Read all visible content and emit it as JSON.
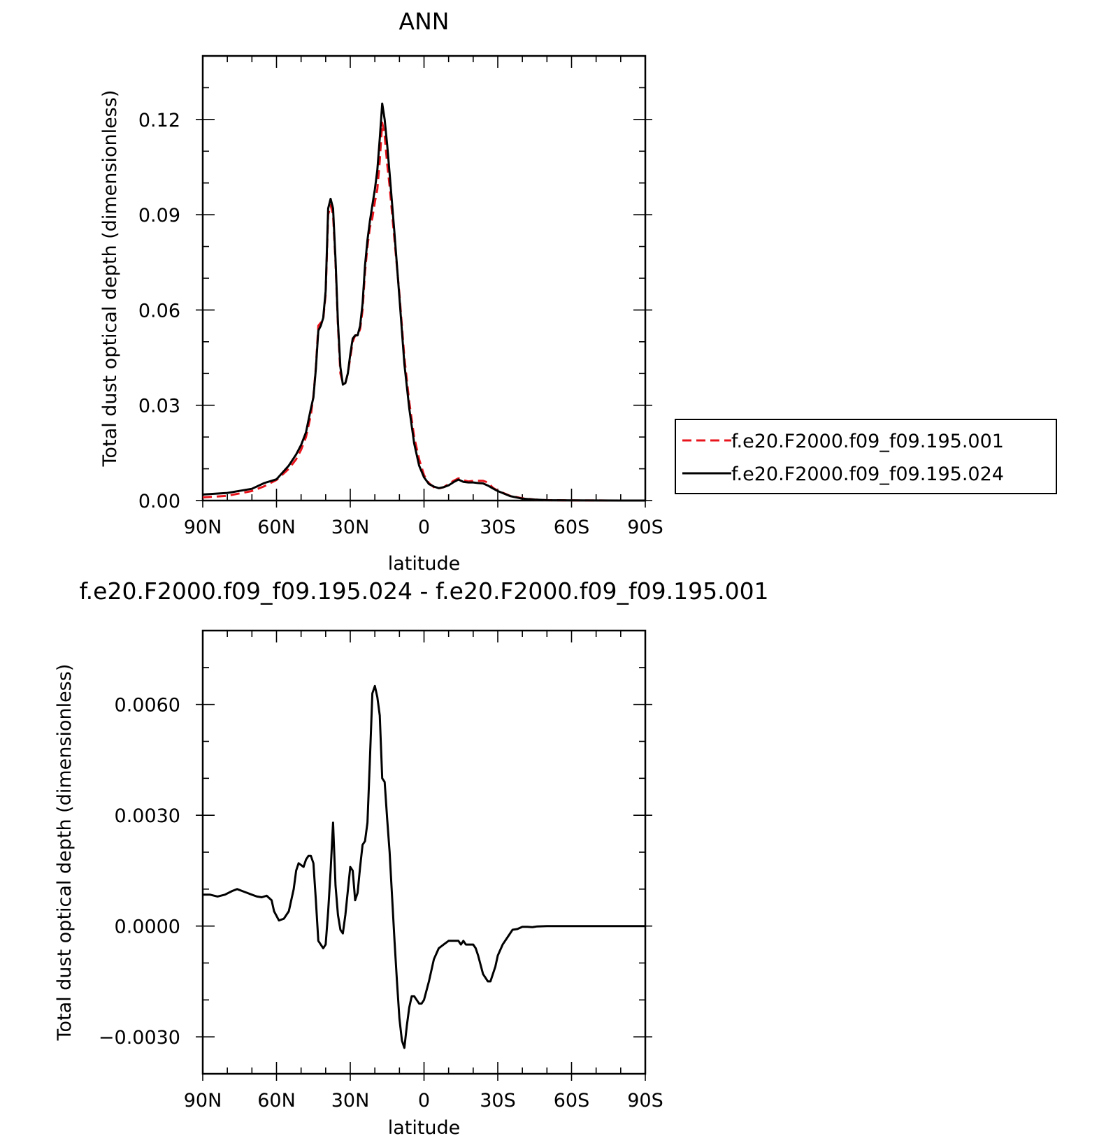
{
  "chart_data": [
    {
      "type": "line",
      "title": "ANN",
      "xlabel": "latitude",
      "ylabel": "Total dust optical depth (dimensionless)",
      "xlim": [
        90,
        -90
      ],
      "ylim": [
        0,
        0.14
      ],
      "x_tick_values": [
        90,
        60,
        30,
        0,
        -30,
        -60,
        -90
      ],
      "x_tick_labels": [
        "90N",
        "60N",
        "30N",
        "0",
        "30S",
        "60S",
        "90S"
      ],
      "y_tick_values": [
        0,
        0.03,
        0.06,
        0.09,
        0.12
      ],
      "y_tick_labels": [
        "0.00",
        "0.03",
        "0.06",
        "0.09",
        "0.12"
      ],
      "legend_position": "right",
      "series": [
        {
          "name": "f.e20.F2000.f09_f09.195.001",
          "color": "#e8141c",
          "dash": "dashed",
          "x": [
            90,
            80,
            70,
            65,
            60,
            55,
            52,
            50,
            48,
            46,
            45,
            44,
            43,
            42,
            41,
            40,
            39,
            38,
            37,
            36,
            35,
            34,
            33,
            32,
            31,
            30,
            29,
            28,
            27,
            26,
            25,
            24,
            23,
            22,
            21,
            20,
            19,
            18,
            17,
            16,
            15,
            14,
            12,
            10,
            8,
            6,
            4,
            2,
            0,
            -2,
            -4,
            -6,
            -8,
            -10,
            -12,
            -14,
            -16,
            -18,
            -20,
            -22,
            -24,
            -26,
            -28,
            -30,
            -35,
            -40,
            -45,
            -50,
            -60,
            -70,
            -80,
            -90
          ],
          "y": [
            0.001,
            0.0015,
            0.003,
            0.0045,
            0.0065,
            0.01,
            0.013,
            0.016,
            0.02,
            0.027,
            0.033,
            0.042,
            0.055,
            0.056,
            0.057,
            0.065,
            0.09,
            0.093,
            0.09,
            0.075,
            0.055,
            0.04,
            0.037,
            0.037,
            0.04,
            0.045,
            0.05,
            0.052,
            0.052,
            0.054,
            0.06,
            0.072,
            0.08,
            0.086,
            0.089,
            0.094,
            0.098,
            0.107,
            0.119,
            0.115,
            0.106,
            0.099,
            0.082,
            0.065,
            0.045,
            0.031,
            0.02,
            0.013,
            0.008,
            0.0055,
            0.0042,
            0.0038,
            0.0042,
            0.0052,
            0.0062,
            0.007,
            0.0064,
            0.006,
            0.0062,
            0.0062,
            0.0062,
            0.0057,
            0.004,
            0.0031,
            0.0015,
            0.0007,
            0.0003,
            0.0001,
            5e-05,
            2e-05,
            1e-05,
            0.0
          ]
        },
        {
          "name": "f.e20.F2000.f09_f09.195.024",
          "color": "#000000",
          "dash": "solid",
          "x": [
            90,
            80,
            70,
            65,
            60,
            55,
            52,
            50,
            48,
            46,
            45,
            44,
            43,
            42,
            41,
            40,
            39,
            38,
            37,
            36,
            35,
            34,
            33,
            32,
            31,
            30,
            29,
            28,
            27,
            26,
            25,
            24,
            23,
            22,
            21,
            20,
            19,
            18,
            17,
            16,
            15,
            14,
            12,
            10,
            8,
            6,
            4,
            2,
            0,
            -2,
            -4,
            -6,
            -8,
            -10,
            -12,
            -14,
            -16,
            -18,
            -20,
            -22,
            -24,
            -26,
            -28,
            -30,
            -35,
            -40,
            -45,
            -50,
            -60,
            -70,
            -80,
            -90
          ],
          "y": [
            0.0019,
            0.0024,
            0.0037,
            0.0055,
            0.0067,
            0.011,
            0.0145,
            0.0175,
            0.0215,
            0.029,
            0.0325,
            0.0415,
            0.0535,
            0.055,
            0.0575,
            0.066,
            0.092,
            0.095,
            0.092,
            0.076,
            0.056,
            0.042,
            0.0365,
            0.037,
            0.04,
            0.046,
            0.051,
            0.052,
            0.052,
            0.055,
            0.062,
            0.074,
            0.082,
            0.088,
            0.093,
            0.098,
            0.104,
            0.114,
            0.125,
            0.12,
            0.112,
            0.103,
            0.084,
            0.064,
            0.043,
            0.029,
            0.018,
            0.011,
            0.0073,
            0.0052,
            0.0044,
            0.0039,
            0.0042,
            0.0048,
            0.0058,
            0.0066,
            0.0059,
            0.0057,
            0.0057,
            0.0055,
            0.0054,
            0.0047,
            0.0038,
            0.003,
            0.0014,
            0.0006,
            0.0003,
            0.0001,
            5e-05,
            2e-05,
            1e-05,
            0.0
          ]
        }
      ]
    },
    {
      "type": "line",
      "title": "f.e20.F2000.f09_f09.195.024 - f.e20.F2000.f09_f09.195.001",
      "xlabel": "latitude",
      "ylabel": "Total dust optical depth (dimensionless)",
      "xlim": [
        90,
        -90
      ],
      "ylim": [
        -0.004,
        0.008
      ],
      "x_tick_values": [
        90,
        60,
        30,
        0,
        -30,
        -60,
        -90
      ],
      "x_tick_labels": [
        "90N",
        "60N",
        "30N",
        "0",
        "30S",
        "60S",
        "90S"
      ],
      "y_tick_values": [
        -0.003,
        0.0,
        0.003,
        0.006
      ],
      "y_tick_labels": [
        "−0.0030",
        "0.0000",
        "0.0030",
        "0.0060"
      ],
      "series": [
        {
          "color": "#000000",
          "dash": "solid",
          "x": [
            90,
            87,
            84,
            81,
            78,
            76,
            74,
            72,
            70,
            68,
            66,
            64,
            62,
            61,
            59,
            57,
            55,
            53,
            52,
            51,
            49,
            48,
            47,
            46,
            45,
            44,
            43,
            41,
            40,
            39,
            38,
            37,
            36,
            35,
            34,
            33,
            32,
            30,
            29,
            28,
            27,
            26,
            25,
            24,
            23,
            22,
            21,
            20,
            19,
            18,
            17,
            16,
            15,
            14,
            13,
            12,
            11,
            10,
            9,
            8,
            7,
            6,
            5,
            4,
            3,
            2,
            1,
            0,
            -2,
            -4,
            -6,
            -8,
            -10,
            -12,
            -14,
            -15,
            -16,
            -17,
            -18,
            -20,
            -21,
            -22,
            -24,
            -26,
            -27,
            -28,
            -29,
            -30,
            -32,
            -34,
            -36,
            -38,
            -40,
            -42,
            -44,
            -46,
            -50,
            -55,
            -60,
            -70,
            -80,
            -90
          ],
          "y": [
            0.00085,
            0.00085,
            0.0008,
            0.00085,
            0.00095,
            0.001,
            0.00095,
            0.0009,
            0.00085,
            0.0008,
            0.00078,
            0.00082,
            0.0007,
            0.0004,
            0.00015,
            0.0002,
            0.0004,
            0.001,
            0.0015,
            0.0017,
            0.0016,
            0.0018,
            0.0019,
            0.0019,
            0.0017,
            0.0007,
            -0.0004,
            -0.0006,
            -0.0005,
            0.0004,
            0.0015,
            0.0028,
            0.0011,
            0.0003,
            -0.0001,
            -0.0002,
            0.0003,
            0.0016,
            0.0015,
            0.0007,
            0.0009,
            0.0016,
            0.0022,
            0.0023,
            0.0028,
            0.0045,
            0.0063,
            0.0065,
            0.0062,
            0.0057,
            0.004,
            0.0039,
            0.0029,
            0.002,
            0.0008,
            -0.0004,
            -0.0015,
            -0.0025,
            -0.0031,
            -0.0033,
            -0.0027,
            -0.0022,
            -0.0019,
            -0.0019,
            -0.002,
            -0.0021,
            -0.0021,
            -0.002,
            -0.0015,
            -0.0009,
            -0.0006,
            -0.0005,
            -0.0004,
            -0.0004,
            -0.0004,
            -0.0005,
            -0.0004,
            -0.0005,
            -0.0005,
            -0.0005,
            -0.0006,
            -0.0008,
            -0.0013,
            -0.0015,
            -0.0015,
            -0.0013,
            -0.0011,
            -0.0008,
            -0.0005,
            -0.0003,
            -0.0001,
            -8e-05,
            -2e-05,
            -2e-05,
            -3e-05,
            -1e-05,
            0.0,
            0.0,
            0.0,
            0.0,
            0.0,
            0.0
          ]
        }
      ]
    }
  ]
}
